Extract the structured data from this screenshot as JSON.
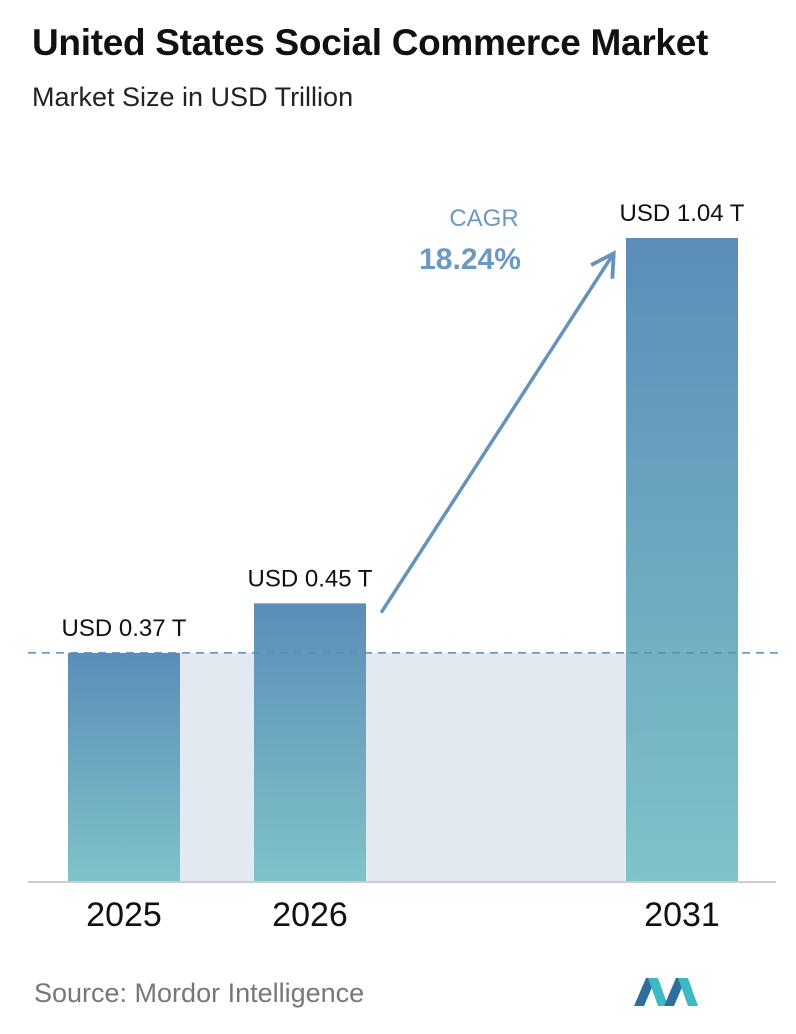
{
  "header": {
    "title": "United States Social Commerce Market",
    "subtitle": "Market Size in USD Trillion"
  },
  "chart_data": {
    "type": "bar",
    "title": "United States Social Commerce Market",
    "subtitle": "Market Size in USD Trillion",
    "categories": [
      "2025",
      "2026",
      "2031"
    ],
    "values": [
      0.37,
      0.45,
      1.04
    ],
    "data_labels": [
      "USD 0.37 T",
      "USD 0.45 T",
      "USD 1.04 T"
    ],
    "xlabel": "",
    "ylabel": "",
    "ylim": [
      0,
      1.04
    ],
    "grid": false,
    "legend": "none",
    "annotation": {
      "label": "CAGR",
      "value": "18.24%"
    },
    "colors": {
      "bar_top": "#5b8db8",
      "bar_bottom": "#7fc3c8",
      "band": "#e2e9f1",
      "arrow": "#6593bb",
      "cagr_text": "#6a9ac4",
      "dashed_line": "#5b8db8",
      "axis": "#cccccc"
    }
  },
  "footer": {
    "source": "Source:  Mordor Intelligence"
  },
  "logo": {
    "icon": "mordor-intelligence-logo-icon"
  }
}
